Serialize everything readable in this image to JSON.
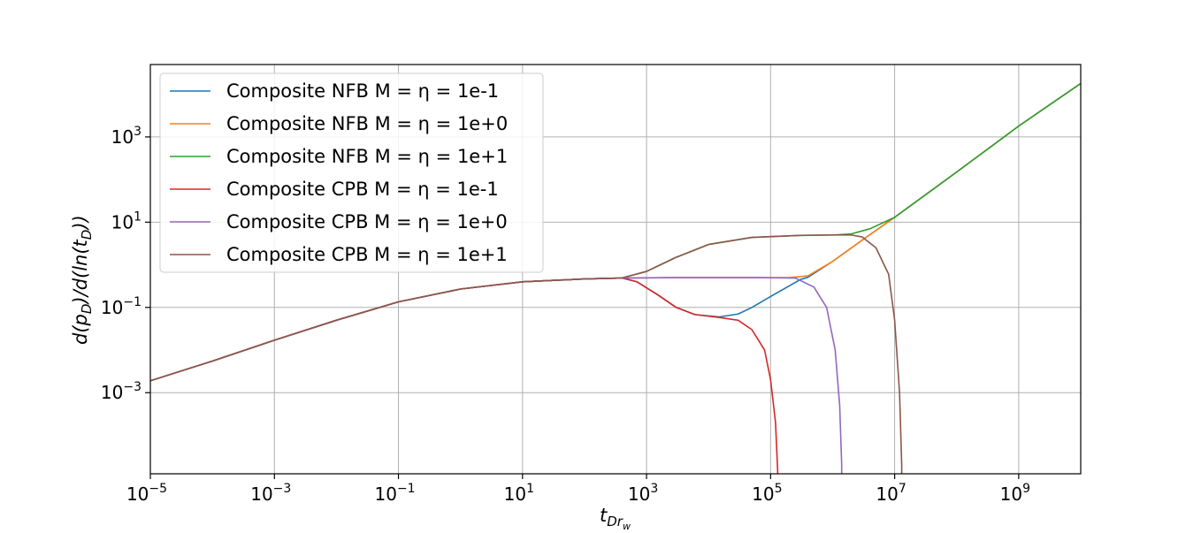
{
  "chart_data": {
    "type": "line",
    "xscale": "log",
    "yscale": "log",
    "xlim": [
      1e-05,
      10000000000.0
    ],
    "ylim": [
      1.25e-05,
      50000
    ],
    "grid": true,
    "legend_position": "top-left",
    "xlabel": {
      "base": "t",
      "sub": "Dr",
      "subsub": "w"
    },
    "ylabel": {
      "pre": "d(p",
      "sub1": "D",
      "mid": ")/d(ln(t",
      "sub2": "D",
      "post": "))"
    },
    "xticks": [
      {
        "value": 1e-05,
        "base": "10",
        "exp": "−5"
      },
      {
        "value": 0.001,
        "base": "10",
        "exp": "−3"
      },
      {
        "value": 0.1,
        "base": "10",
        "exp": "−1"
      },
      {
        "value": 10,
        "base": "10",
        "exp": "1"
      },
      {
        "value": 1000,
        "base": "10",
        "exp": "3"
      },
      {
        "value": 100000,
        "base": "10",
        "exp": "5"
      },
      {
        "value": 10000000,
        "base": "10",
        "exp": "7"
      },
      {
        "value": 1000000000,
        "base": "10",
        "exp": "9"
      }
    ],
    "yticks": [
      {
        "value": 0.001,
        "base": "10",
        "exp": "−3"
      },
      {
        "value": 0.1,
        "base": "10",
        "exp": "−1"
      },
      {
        "value": 10,
        "base": "10",
        "exp": "1"
      },
      {
        "value": 1000,
        "base": "10",
        "exp": "3"
      }
    ],
    "series": [
      {
        "name": "Composite NFB M = η = 1e-1",
        "color": "#1f77b4",
        "points": [
          [
            1e-05,
            0.0019
          ],
          [
            0.0001,
            0.0055
          ],
          [
            0.001,
            0.017
          ],
          [
            0.01,
            0.05
          ],
          [
            0.1,
            0.135
          ],
          [
            1,
            0.27
          ],
          [
            10,
            0.4
          ],
          [
            100,
            0.465
          ],
          [
            400,
            0.49
          ],
          [
            700,
            0.4
          ],
          [
            1500,
            0.2
          ],
          [
            3000,
            0.1
          ],
          [
            6000,
            0.068
          ],
          [
            15000,
            0.06
          ],
          [
            30000,
            0.07
          ],
          [
            50000,
            0.1
          ],
          [
            100000,
            0.18
          ],
          [
            200000,
            0.32
          ],
          [
            300000,
            0.45
          ],
          [
            400000,
            0.51
          ],
          [
            1000000,
            1.2
          ],
          [
            3000000,
            3.8
          ],
          [
            10000000,
            13
          ],
          [
            100000000,
            150
          ],
          [
            1000000000,
            1800
          ],
          [
            10000000000,
            18000
          ]
        ]
      },
      {
        "name": "Composite NFB M = η = 1e+0",
        "color": "#ff7f0e",
        "points": [
          [
            1e-05,
            0.0019
          ],
          [
            0.0001,
            0.0055
          ],
          [
            0.001,
            0.017
          ],
          [
            0.01,
            0.05
          ],
          [
            0.1,
            0.135
          ],
          [
            1,
            0.27
          ],
          [
            10,
            0.4
          ],
          [
            100,
            0.465
          ],
          [
            400,
            0.49
          ],
          [
            3000,
            0.5
          ],
          [
            50000,
            0.5
          ],
          [
            200000,
            0.5
          ],
          [
            400000,
            0.55
          ],
          [
            1000000,
            1.2
          ],
          [
            3000000,
            3.8
          ],
          [
            10000000,
            13
          ],
          [
            100000000,
            150
          ],
          [
            1000000000,
            1800
          ],
          [
            10000000000,
            18000
          ]
        ]
      },
      {
        "name": "Composite NFB M = η = 1e+1",
        "color": "#2ca02c",
        "points": [
          [
            1e-05,
            0.0019
          ],
          [
            0.0001,
            0.0055
          ],
          [
            0.001,
            0.017
          ],
          [
            0.01,
            0.05
          ],
          [
            0.1,
            0.135
          ],
          [
            1,
            0.27
          ],
          [
            10,
            0.4
          ],
          [
            100,
            0.465
          ],
          [
            400,
            0.49
          ],
          [
            1000,
            0.7
          ],
          [
            3000,
            1.5
          ],
          [
            10000,
            3
          ],
          [
            50000,
            4.4
          ],
          [
            300000,
            4.9
          ],
          [
            1000000,
            5
          ],
          [
            2000000,
            5.3
          ],
          [
            4000000,
            7
          ],
          [
            10000000,
            13
          ],
          [
            100000000,
            150
          ],
          [
            1000000000,
            1800
          ],
          [
            10000000000,
            18000
          ]
        ]
      },
      {
        "name": "Composite CPB M = η = 1e-1",
        "color": "#d62728",
        "points": [
          [
            1e-05,
            0.0019
          ],
          [
            0.0001,
            0.0055
          ],
          [
            0.001,
            0.017
          ],
          [
            0.01,
            0.05
          ],
          [
            0.1,
            0.135
          ],
          [
            1,
            0.27
          ],
          [
            10,
            0.4
          ],
          [
            100,
            0.465
          ],
          [
            400,
            0.49
          ],
          [
            700,
            0.4
          ],
          [
            1500,
            0.2
          ],
          [
            3000,
            0.1
          ],
          [
            6000,
            0.068
          ],
          [
            15000,
            0.058
          ],
          [
            30000,
            0.05
          ],
          [
            50000,
            0.03
          ],
          [
            80000,
            0.01
          ],
          [
            100000,
            0.002
          ],
          [
            120000,
            0.0002
          ],
          [
            130000,
            1.5e-05
          ],
          [
            130000,
            1.25e-05
          ]
        ]
      },
      {
        "name": "Composite CPB M = η = 1e+0",
        "color": "#9467bd",
        "points": [
          [
            1e-05,
            0.0019
          ],
          [
            0.0001,
            0.0055
          ],
          [
            0.001,
            0.017
          ],
          [
            0.01,
            0.05
          ],
          [
            0.1,
            0.135
          ],
          [
            1,
            0.27
          ],
          [
            10,
            0.4
          ],
          [
            100,
            0.465
          ],
          [
            400,
            0.49
          ],
          [
            3000,
            0.5
          ],
          [
            50000,
            0.5
          ],
          [
            250000,
            0.49
          ],
          [
            500000,
            0.3
          ],
          [
            800000,
            0.1
          ],
          [
            1100000,
            0.01
          ],
          [
            1300000,
            0.0005
          ],
          [
            1400000,
            2e-05
          ],
          [
            1400000,
            1.25e-05
          ]
        ]
      },
      {
        "name": "Composite CPB M = η = 1e+1",
        "color": "#8c564b",
        "points": [
          [
            1e-05,
            0.0019
          ],
          [
            0.0001,
            0.0055
          ],
          [
            0.001,
            0.017
          ],
          [
            0.01,
            0.05
          ],
          [
            0.1,
            0.135
          ],
          [
            1,
            0.27
          ],
          [
            10,
            0.4
          ],
          [
            100,
            0.465
          ],
          [
            400,
            0.49
          ],
          [
            1000,
            0.7
          ],
          [
            3000,
            1.5
          ],
          [
            10000,
            3
          ],
          [
            50000,
            4.4
          ],
          [
            300000,
            4.9
          ],
          [
            1000000,
            5
          ],
          [
            2000000,
            5
          ],
          [
            3000000,
            4.5
          ],
          [
            5000000,
            2.5
          ],
          [
            8000000,
            0.6
          ],
          [
            10000000,
            0.05
          ],
          [
            12000000,
            0.001
          ],
          [
            13000000,
            2e-05
          ],
          [
            13000000,
            1.25e-05
          ]
        ]
      }
    ]
  }
}
